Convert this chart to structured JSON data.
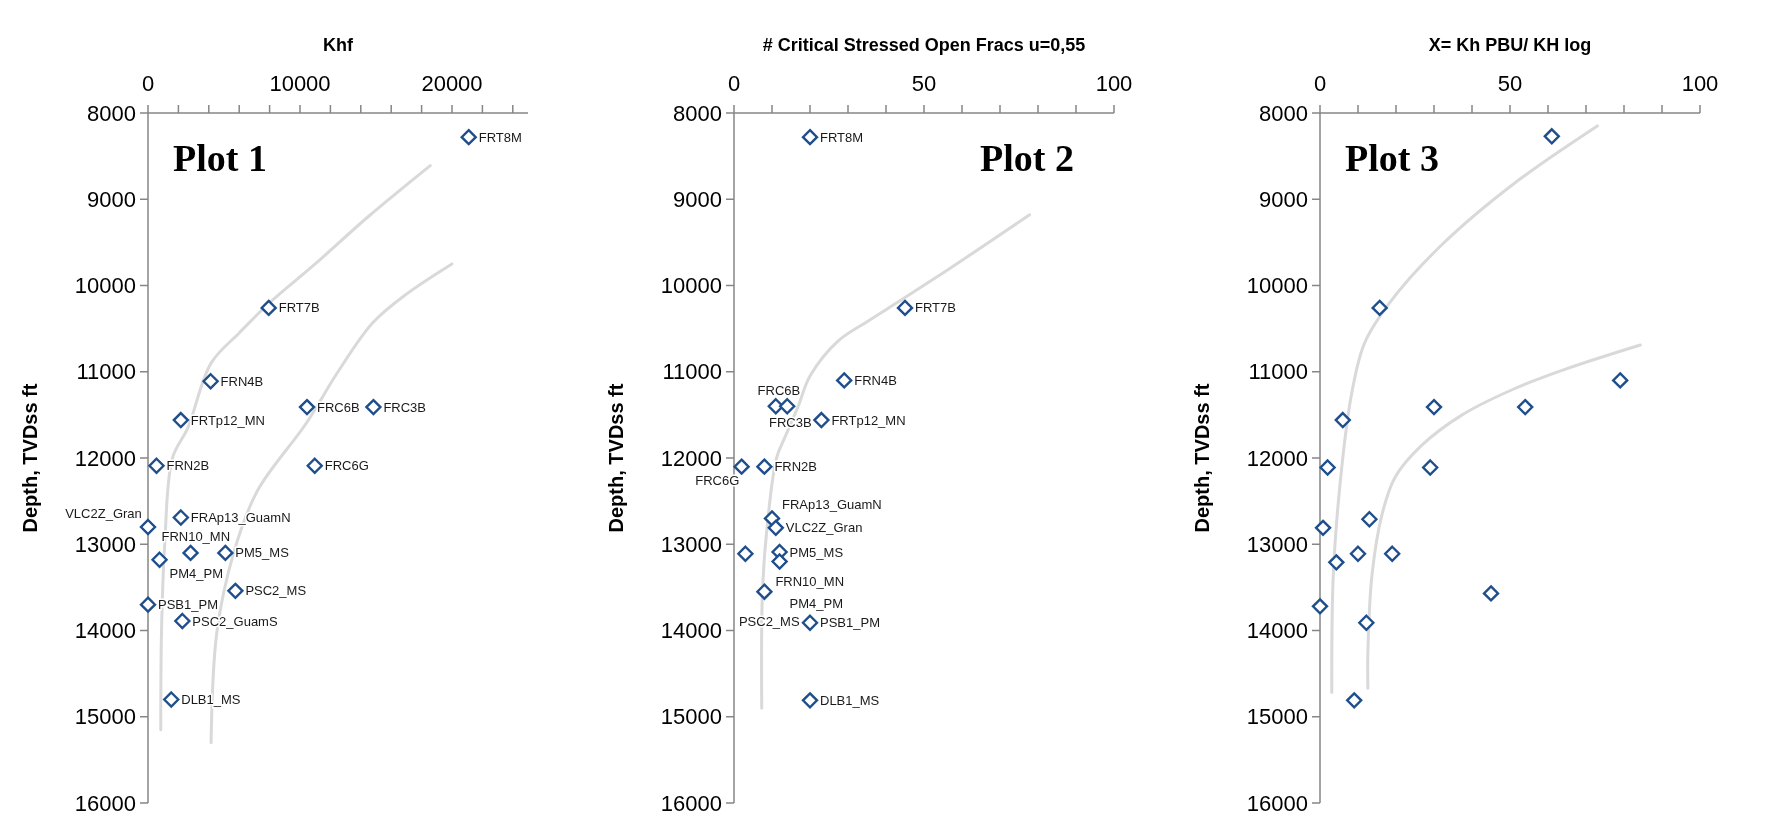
{
  "chart_data": [
    {
      "type": "scatter",
      "title": "Plot 1",
      "xlabel": "Khf",
      "ylabel": "Depth, TVDss ft",
      "xlim": [
        0,
        25000
      ],
      "xticks": [
        0,
        {
          "value": 2000,
          "label": null
        },
        {
          "value": 4000,
          "label": null
        },
        {
          "value": 6000,
          "label": null
        },
        {
          "value": 8000,
          "label": null
        },
        10000,
        {
          "value": 12000,
          "label": null
        },
        {
          "value": 14000,
          "label": null
        },
        {
          "value": 16000,
          "label": null
        },
        {
          "value": 18000,
          "label": null
        },
        20000,
        {
          "value": 22000,
          "label": null
        },
        {
          "value": 24000,
          "label": null
        }
      ],
      "ylim": [
        16000,
        8000
      ],
      "yticks": [
        8000,
        9000,
        10000,
        11000,
        12000,
        13000,
        14000,
        15000,
        16000
      ],
      "series": [
        {
          "marker": "diamond",
          "color": "#1f4e8c",
          "x": [
            21100,
            7940,
            4120,
            10460,
            14830,
            2160,
            10970,
            560,
            2160,
            0,
            2800,
            5090,
            760,
            5750,
            0,
            2260,
            1530
          ],
          "values": [
            8280,
            10260,
            11110,
            11410,
            11410,
            11560,
            12090,
            12090,
            12690,
            12800,
            13100,
            13100,
            13180,
            13540,
            13700,
            13890,
            14800
          ]
        },
        {
          "type": "line",
          "color": "#d9d9d9",
          "x": [
            18570,
            14500,
            11000,
            8000,
            6000,
            4150,
            2620,
            1610,
            1100,
            890,
            840
          ],
          "values": [
            8610,
            9200,
            9750,
            10200,
            10550,
            10900,
            11650,
            12000,
            13000,
            14000,
            15150
          ]
        },
        {
          "type": "line",
          "color": "#d9d9d9",
          "x": [
            20000,
            17000,
            14800,
            12500,
            10400,
            7200,
            5670,
            4530,
            4150
          ],
          "values": [
            9750,
            10100,
            10430,
            11000,
            11600,
            12380,
            13080,
            14020,
            15300
          ]
        }
      ],
      "annotations": [
        {
          "text": "FRT8M",
          "x": 21100,
          "y": 8280
        },
        {
          "text": "FRT7B",
          "x": 7940,
          "y": 10260
        },
        {
          "text": "FRN4B",
          "x": 4120,
          "y": 11110
        },
        {
          "text": "FRC6B",
          "x": 10460,
          "y": 11410
        },
        {
          "text": "FRC3B",
          "x": 14830,
          "y": 11410
        },
        {
          "text": "FRTp12_MN",
          "x": 2160,
          "y": 11560
        },
        {
          "text": "FRC6G",
          "x": 10970,
          "y": 12090
        },
        {
          "text": "FRN2B",
          "x": 560,
          "y": 12090
        },
        {
          "text": "FRAp13_GuamN",
          "x": 2160,
          "y": 12690
        },
        {
          "text": "VLC2Z_Gran",
          "x": 0,
          "y": 12800
        },
        {
          "text": "FRN10_MN",
          "x": 2800,
          "y": 13100
        },
        {
          "text": "PM5_MS",
          "x": 5090,
          "y": 13100
        },
        {
          "text": "PM4_PM",
          "x": 760,
          "y": 13180
        },
        {
          "text": "PSC2_MS",
          "x": 5750,
          "y": 13540
        },
        {
          "text": "PSB1_PM",
          "x": 0,
          "y": 13700
        },
        {
          "text": "PSC2_GuamS",
          "x": 2260,
          "y": 13890
        },
        {
          "text": "DLB1_MS",
          "x": 1530,
          "y": 14800
        }
      ]
    },
    {
      "type": "scatter",
      "title": "Plot 2",
      "xlabel": "# Critical Stressed Open Fracs u=0,55",
      "ylabel": "Depth, TVDss ft",
      "xlim": [
        0,
        100
      ],
      "xticks": [
        0,
        {
          "value": 10,
          "label": null
        },
        {
          "value": 20,
          "label": null
        },
        {
          "value": 30,
          "label": null
        },
        {
          "value": 40,
          "label": null
        },
        50,
        {
          "value": 60,
          "label": null
        },
        {
          "value": 70,
          "label": null
        },
        {
          "value": 80,
          "label": null
        },
        {
          "value": 90,
          "label": null
        },
        100
      ],
      "ylim": [
        16000,
        8000
      ],
      "yticks": [
        8000,
        9000,
        10000,
        11000,
        12000,
        13000,
        14000,
        15000,
        16000
      ],
      "series": [
        {
          "marker": "diamond",
          "color": "#1f4e8c",
          "x": [
            20,
            45,
            29,
            11,
            14,
            23,
            2,
            8,
            10,
            11,
            3,
            12,
            12,
            8,
            20,
            20
          ],
          "values": [
            8280,
            10260,
            11100,
            11400,
            11400,
            11560,
            12100,
            12100,
            12700,
            12810,
            13110,
            13090,
            13200,
            13550,
            13910,
            14810
          ]
        },
        {
          "type": "line",
          "color": "#d9d9d9",
          "x": [
            77.8,
            62,
            45,
            35,
            27.5,
            20,
            16.9,
            13.5,
            11.2,
            8.8,
            7.5,
            7.3
          ],
          "values": [
            9180,
            9650,
            10140,
            10420,
            10640,
            11050,
            11400,
            11750,
            12000,
            12760,
            13530,
            14900
          ]
        }
      ],
      "annotations": [
        {
          "text": "FRT8M",
          "x": 20,
          "y": 8280
        },
        {
          "text": "FRT7B",
          "x": 45,
          "y": 10260
        },
        {
          "text": "FRN4B",
          "x": 29,
          "y": 11100
        },
        {
          "text": "FRC6B",
          "x": 11,
          "y": 11400
        },
        {
          "text": "FRC3B",
          "x": 14,
          "y": 11400
        },
        {
          "text": "FRTp12_MN",
          "x": 23,
          "y": 11560
        },
        {
          "text": "FRC6G",
          "x": 2,
          "y": 12100
        },
        {
          "text": "FRN2B",
          "x": 8,
          "y": 12100
        },
        {
          "text": "FRAp13_GuamN",
          "x": 10,
          "y": 12700
        },
        {
          "text": "VLC2Z_Gran",
          "x": 11,
          "y": 12810
        },
        {
          "text": "FRN10_MN",
          "x": 3,
          "y": 13110
        },
        {
          "text": "PM5_MS",
          "x": 12,
          "y": 13090
        },
        {
          "text": "PM4_PM",
          "x": 12,
          "y": 13200
        },
        {
          "text": "PSC2_MS",
          "x": 8,
          "y": 13550
        },
        {
          "text": "PSB1_PM",
          "x": 20,
          "y": 13910
        },
        {
          "text": "DLB1_MS",
          "x": 20,
          "y": 14810
        }
      ]
    },
    {
      "type": "scatter",
      "title": "Plot 3",
      "xlabel": "X= Kh PBU/ KH log",
      "ylabel": "Depth, TVDss ft",
      "xlim": [
        0,
        100
      ],
      "xticks": [
        0,
        {
          "value": 10,
          "label": null
        },
        {
          "value": 20,
          "label": null
        },
        {
          "value": 30,
          "label": null
        },
        {
          "value": 40,
          "label": null
        },
        50,
        {
          "value": 60,
          "label": null
        },
        {
          "value": 70,
          "label": null
        },
        {
          "value": 80,
          "label": null
        },
        {
          "value": 90,
          "label": null
        },
        100
      ],
      "ylim": [
        16000,
        8000
      ],
      "yticks": [
        8000,
        9000,
        10000,
        11000,
        12000,
        13000,
        14000,
        15000,
        16000
      ],
      "series": [
        {
          "marker": "diamond",
          "color": "#1f4e8c",
          "x": [
            61,
            15.7,
            79,
            30,
            54,
            6,
            2,
            29,
            13,
            0.8,
            10,
            19,
            4.3,
            45,
            0,
            12.2,
            9
          ],
          "values": [
            8270,
            10260,
            11100,
            11410,
            11410,
            11560,
            12110,
            12110,
            12710,
            12810,
            13110,
            13110,
            13210,
            13570,
            13720,
            13910,
            14810
          ]
        },
        {
          "type": "line",
          "color": "#d9d9d9",
          "x": [
            73,
            51,
            32,
            18.5,
            11.7,
            8.3,
            5.6,
            3.5,
            3.1
          ],
          "values": [
            8150,
            8820,
            9530,
            10190,
            10670,
            11260,
            12160,
            13350,
            14720
          ]
        },
        {
          "type": "line",
          "color": "#d9d9d9",
          "x": [
            84.3,
            64.6,
            51,
            37.4,
            26.6,
            19.8,
            16.4,
            13.7,
            12.6,
            12.6
          ],
          "values": [
            10690,
            10970,
            11200,
            11500,
            11860,
            12220,
            12640,
            13350,
            14250,
            14670
          ]
        }
      ]
    }
  ]
}
